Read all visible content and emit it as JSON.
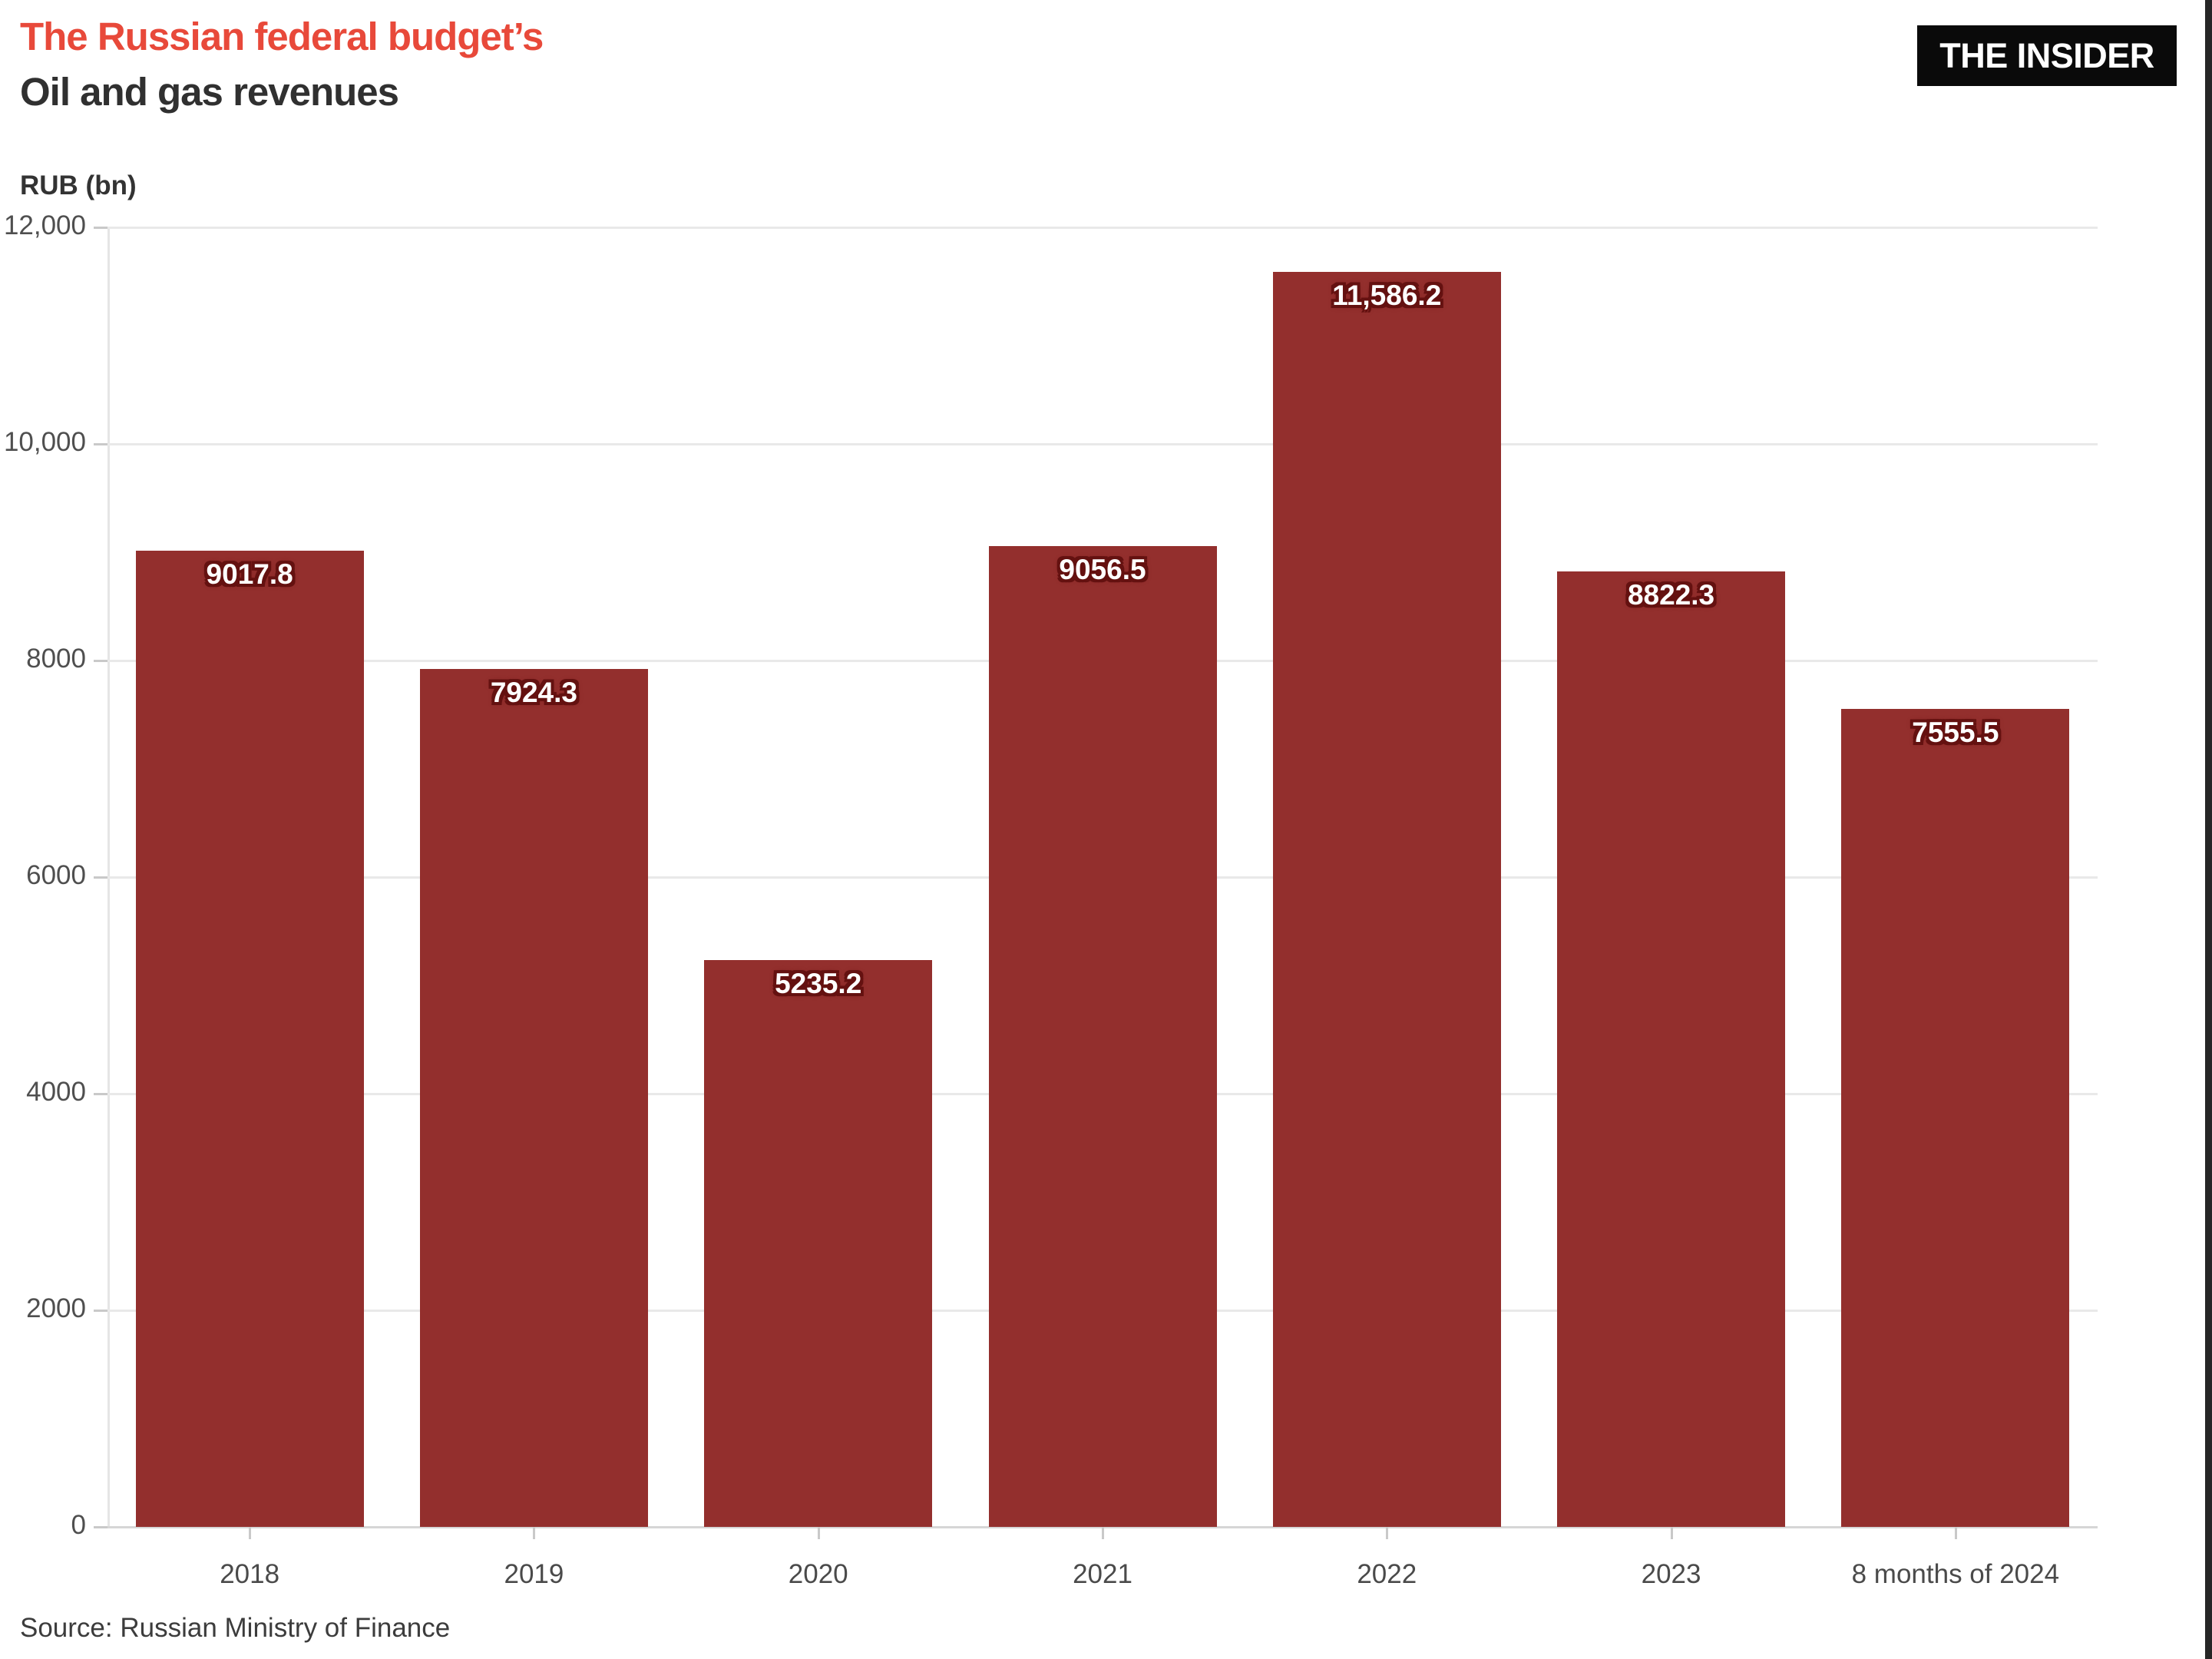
{
  "header": {
    "title_line1": "The Russian federal budget’s",
    "title_line2": "Oil and gas revenues",
    "title_accent_color": "#e8493a",
    "logo_text": "THE INSIDER",
    "logo_bg_color": "#0a0a0a",
    "logo_text_color": "#ffffff"
  },
  "chart_data": {
    "type": "bar",
    "title": "The Russian federal budget’s Oil and gas revenues",
    "ylabel": "RUB (bn)",
    "xlabel": "",
    "categories": [
      "2018",
      "2019",
      "2020",
      "2021",
      "2022",
      "2023",
      "8 months of 2024"
    ],
    "values": [
      9017.8,
      7924.3,
      5235.2,
      9056.5,
      11586.2,
      8822.3,
      7555.5
    ],
    "value_labels": [
      "9017.8",
      "7924.3",
      "5235.2",
      "9056.5",
      "11,586.2",
      "8822.3",
      "7555.5"
    ],
    "bar_color": "#932f2d",
    "value_label_color": "#ffffff",
    "ylim": [
      0,
      12000
    ],
    "yticks": [
      {
        "value": 0,
        "label": "0"
      },
      {
        "value": 2000,
        "label": "2000"
      },
      {
        "value": 4000,
        "label": "4000"
      },
      {
        "value": 6000,
        "label": "6000"
      },
      {
        "value": 8000,
        "label": "8000"
      },
      {
        "value": 10000,
        "label": "10,000"
      },
      {
        "value": 12000,
        "label": "12,000"
      }
    ],
    "grid": true,
    "legend": "none"
  },
  "footer": {
    "source": "Source: Russian Ministry of Finance"
  }
}
